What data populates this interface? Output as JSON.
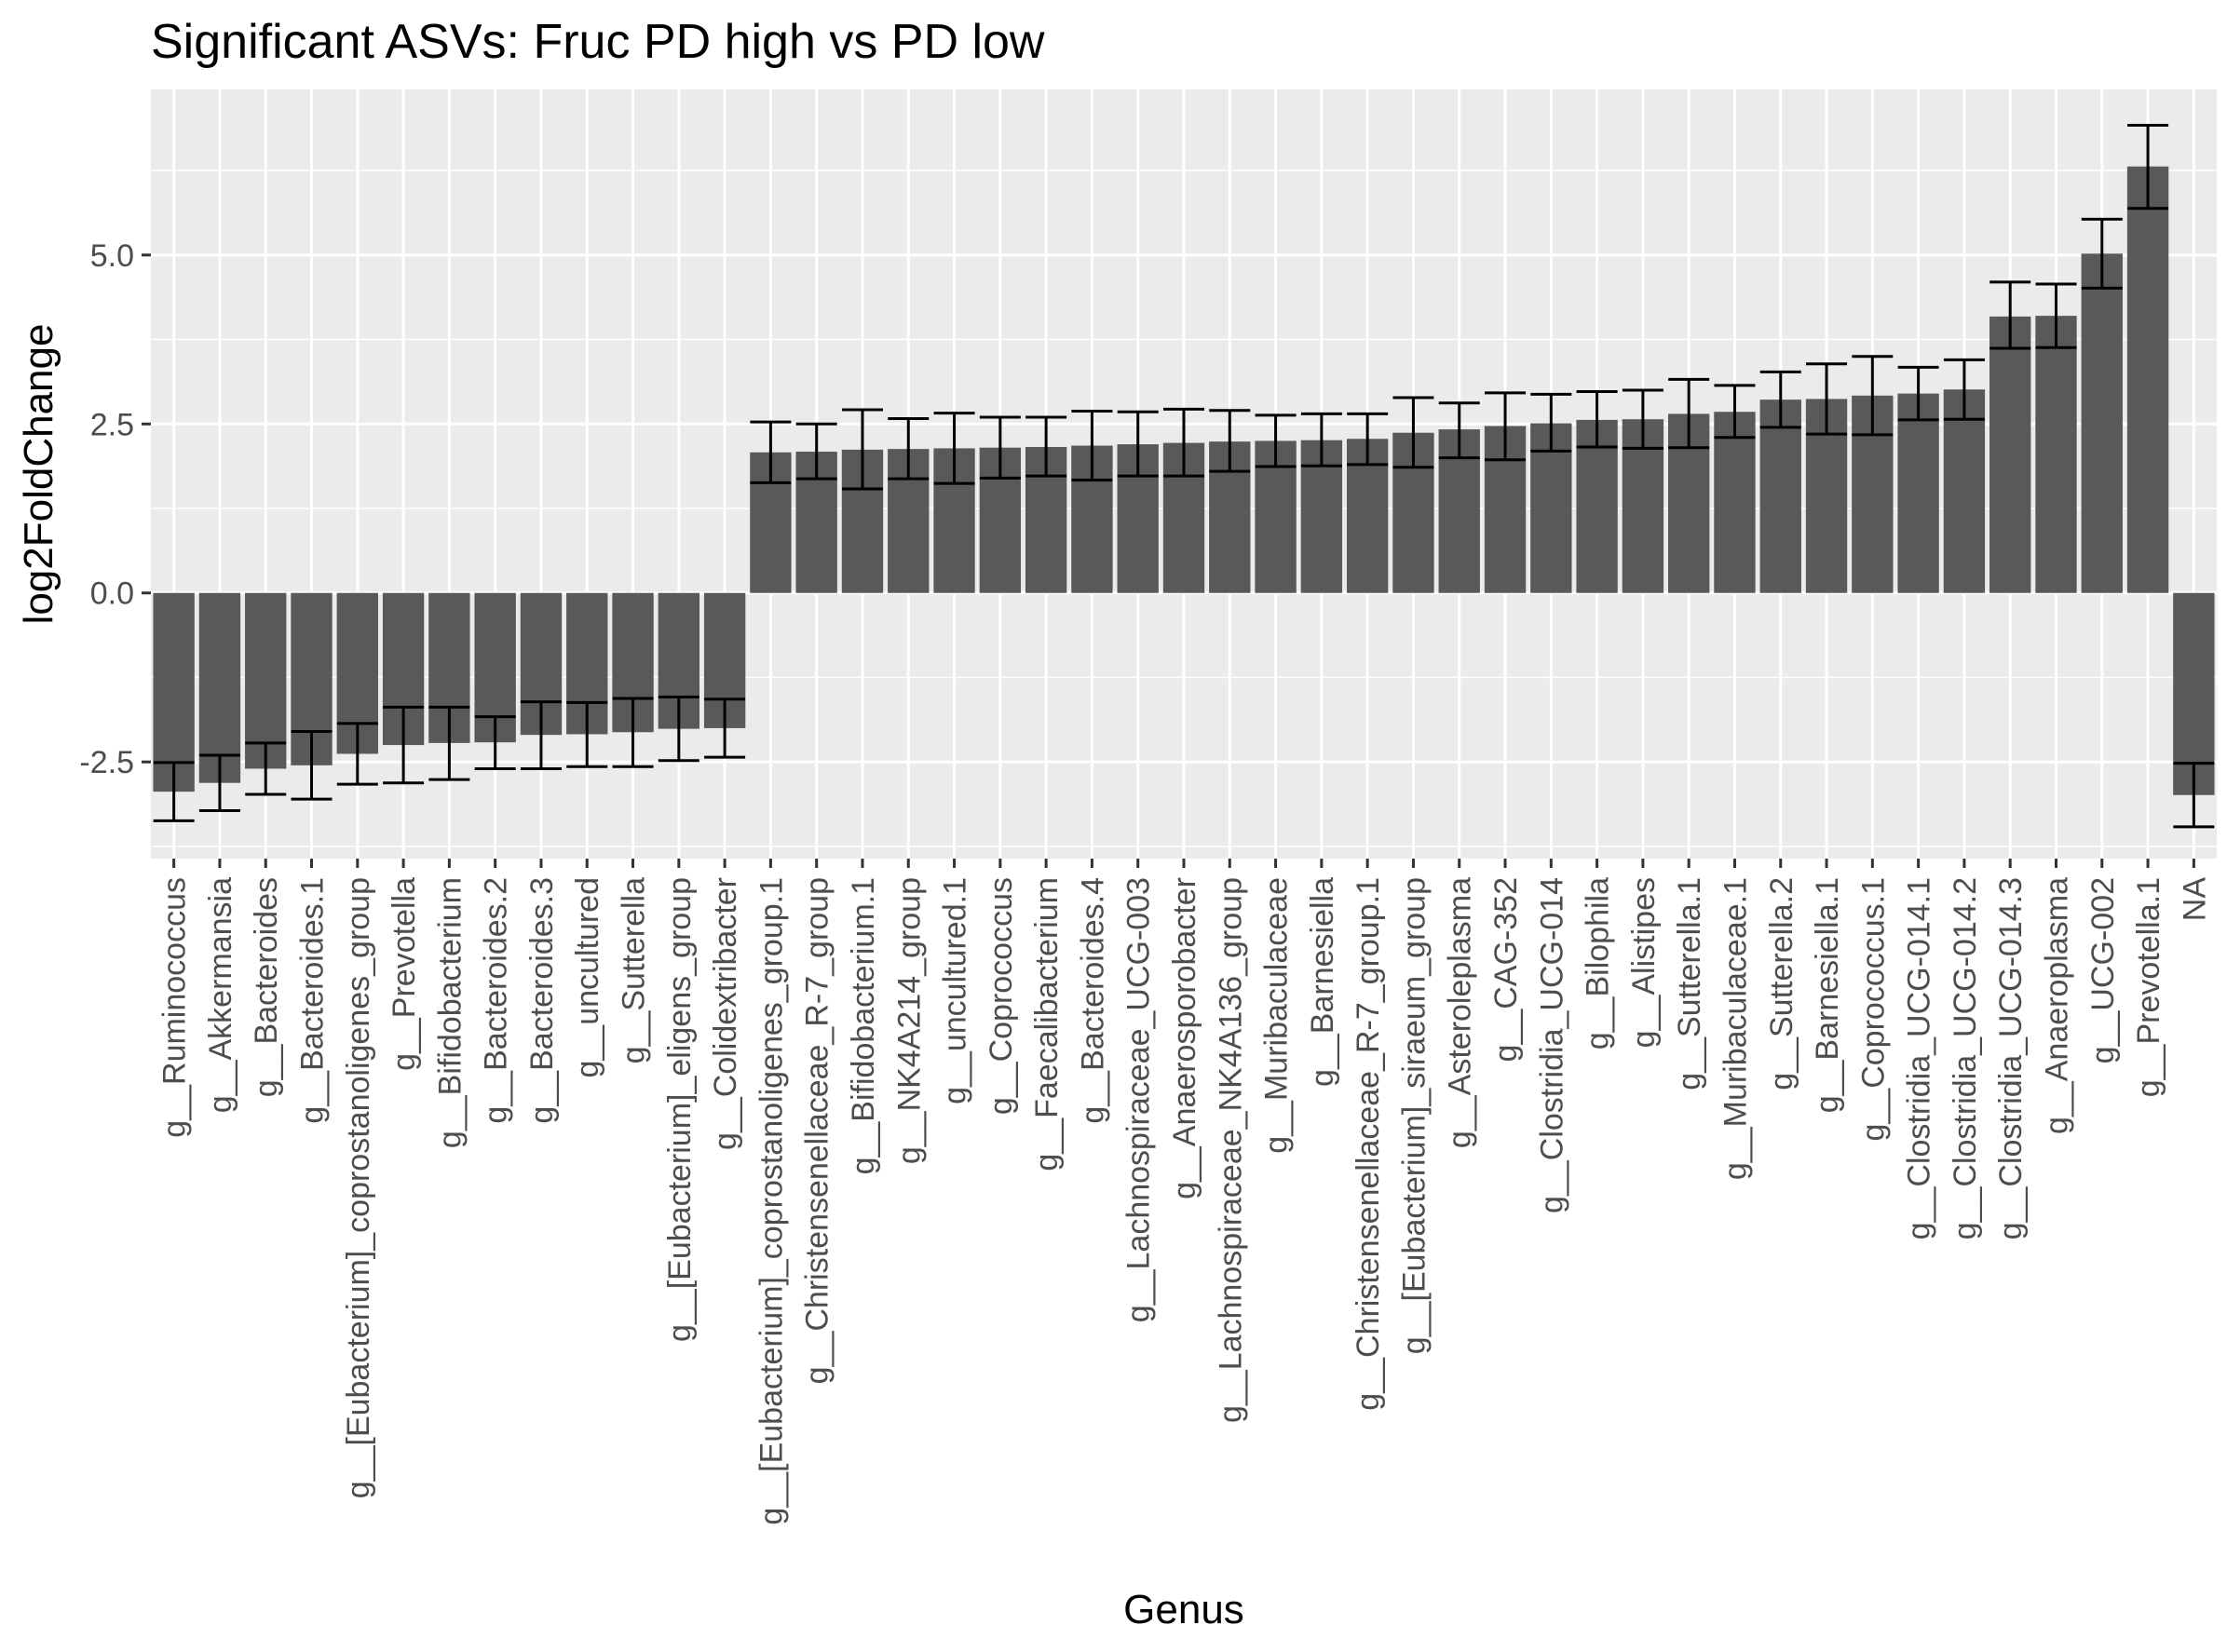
{
  "chart_data": {
    "type": "bar",
    "title": "Significant ASVs: Fruc PD high vs PD low",
    "xlabel": "Genus",
    "ylabel": "log2FoldChange",
    "ylim": [
      -3.93,
      7.45
    ],
    "yticks": [
      -2.5,
      0.0,
      2.5,
      5.0
    ],
    "ytick_labels": [
      "-2.5",
      "0.0",
      "2.5",
      "5.0"
    ],
    "grid": true,
    "legend": "none",
    "colors": {
      "bar": "#595959",
      "panel": "#ebebeb",
      "grid": "#ffffff",
      "errorbar": "#000000"
    },
    "categories": [
      "g__Ruminococcus",
      "g__Akkermansia",
      "g__Bacteroides",
      "g__Bacteroides.1",
      "g__[Eubacterium]_coprostanoligenes_group",
      "g__Prevotella",
      "g__Bifidobacterium",
      "g__Bacteroides.2",
      "g__Bacteroides.3",
      "g__uncultured",
      "g__Sutterella",
      "g__[Eubacterium]_eligens_group",
      "g__Colidextribacter",
      "g__[Eubacterium]_coprostanoligenes_group.1",
      "g__Christensenellaceae_R-7_group",
      "g__Bifidobacterium.1",
      "g__NK4A214_group",
      "g__uncultured.1",
      "g__Coprococcus",
      "g__Faecalibacterium",
      "g__Bacteroides.4",
      "g__Lachnospiraceae_UCG-003",
      "g__Anaerosporobacter",
      "g__Lachnospiraceae_NK4A136_group",
      "g__Muribaculaceae",
      "g__Barnesiella",
      "g__Christensenellaceae_R-7_group.1",
      "g__[Eubacterium]_siraeum_group",
      "g__Asteroleplasma",
      "g__CAG-352",
      "g__Clostridia_UCG-014",
      "g__Bilophila",
      "g__Alistipes",
      "g__Sutterella.1",
      "g__Muribaculaceae.1",
      "g__Sutterella.2",
      "g__Barnesiella.1",
      "g__Coprococcus.1",
      "g__Clostridia_UCG-014.1",
      "g__Clostridia_UCG-014.2",
      "g__Clostridia_UCG-014.3",
      "g__Anaeroplasma",
      "g__UCG-002",
      "g__Prevotella.1",
      "NA"
    ],
    "values": [
      -2.94,
      -2.81,
      -2.6,
      -2.55,
      -2.38,
      -2.25,
      -2.22,
      -2.21,
      -2.1,
      -2.09,
      -2.06,
      -2.01,
      -2.0,
      2.08,
      2.09,
      2.12,
      2.13,
      2.14,
      2.15,
      2.16,
      2.18,
      2.2,
      2.22,
      2.24,
      2.25,
      2.26,
      2.28,
      2.37,
      2.42,
      2.47,
      2.51,
      2.56,
      2.57,
      2.65,
      2.68,
      2.86,
      2.87,
      2.92,
      2.95,
      3.01,
      4.09,
      4.1,
      5.02,
      6.31,
      -2.99
    ],
    "error_low": [
      -3.37,
      -3.22,
      -2.98,
      -3.05,
      -2.83,
      -2.81,
      -2.76,
      -2.6,
      -2.6,
      -2.57,
      -2.57,
      -2.48,
      -2.43,
      1.63,
      1.69,
      1.54,
      1.69,
      1.62,
      1.7,
      1.73,
      1.67,
      1.73,
      1.73,
      1.8,
      1.87,
      1.88,
      1.9,
      1.86,
      2.0,
      1.97,
      2.1,
      2.16,
      2.14,
      2.15,
      2.3,
      2.45,
      2.35,
      2.34,
      2.56,
      2.57,
      3.62,
      3.63,
      4.51,
      5.69,
      -3.46
    ],
    "error_high": [
      -2.51,
      -2.4,
      -2.22,
      -2.05,
      -1.93,
      -1.69,
      -1.69,
      -1.83,
      -1.61,
      -1.62,
      -1.56,
      -1.54,
      -1.57,
      2.53,
      2.5,
      2.71,
      2.58,
      2.66,
      2.6,
      2.6,
      2.69,
      2.68,
      2.72,
      2.7,
      2.63,
      2.65,
      2.65,
      2.89,
      2.81,
      2.96,
      2.94,
      2.98,
      3.0,
      3.16,
      3.07,
      3.27,
      3.39,
      3.5,
      3.34,
      3.45,
      4.6,
      4.57,
      5.53,
      6.92,
      -2.52
    ]
  }
}
